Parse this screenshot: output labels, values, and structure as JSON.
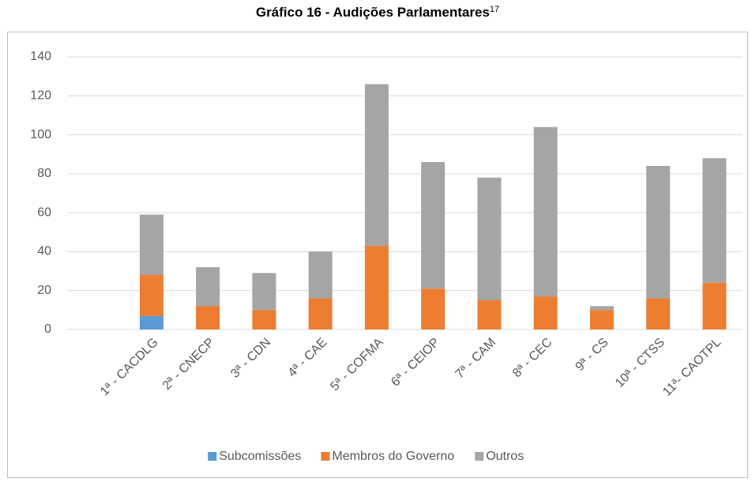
{
  "chart_data": {
    "type": "stacked_bar",
    "title": "Gráfico 16 - Audições Parlamentares",
    "title_superscript": "17",
    "categories": [
      null,
      "1ª - CACDLG",
      "2ª - CNECP",
      "3ª - CDN",
      "4ª - CAE",
      "5ª - COFMA",
      "6ª - CEIOP",
      "7ª - CAM",
      "8ª - CEC",
      "9ª - CS",
      "10ª - CTSS",
      "11ª- CAOTPL"
    ],
    "series": [
      {
        "name": "Subcomissões",
        "color": "#5b9bd5",
        "values": [
          null,
          7,
          0,
          0,
          0,
          0,
          0,
          0,
          0,
          0,
          0,
          0
        ]
      },
      {
        "name": "Membros do Governo",
        "color": "#ed7d31",
        "values": [
          null,
          21,
          12,
          10,
          16,
          43,
          21,
          15,
          17,
          10,
          16,
          24
        ]
      },
      {
        "name": "Outros",
        "color": "#a5a5a5",
        "values": [
          null,
          31,
          20,
          19,
          24,
          83,
          65,
          63,
          87,
          2,
          68,
          64
        ]
      }
    ],
    "ylim": [
      0,
      140
    ],
    "yticks": [
      0,
      20,
      40,
      60,
      80,
      100,
      120,
      140
    ],
    "grid": true,
    "legend": "bottom"
  }
}
